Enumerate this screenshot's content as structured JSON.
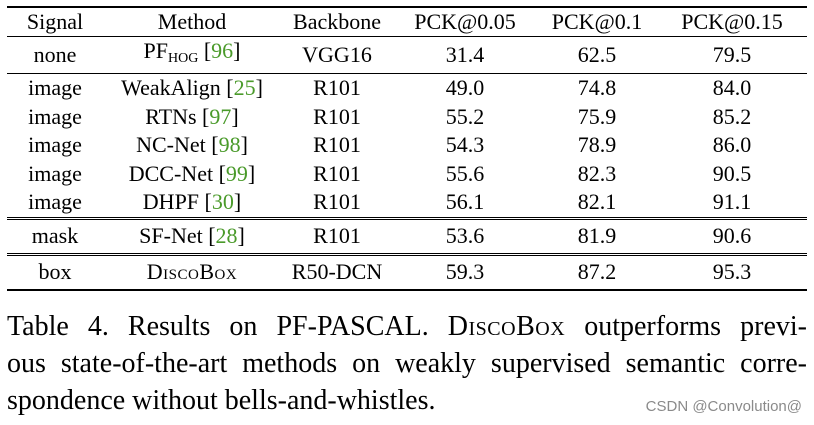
{
  "table": {
    "headers": [
      "Signal",
      "Method",
      "Backbone",
      "PCK@0.05",
      "PCK@0.1",
      "PCK@0.15"
    ],
    "rows": [
      {
        "signal": "none",
        "method": "PF",
        "method_sub": "HOG",
        "cite": "96",
        "backbone": "VGG16",
        "p05": "31.4",
        "p10": "62.5",
        "p15": "79.5"
      },
      {
        "signal": "image",
        "method": "WeakAlign",
        "cite": "25",
        "backbone": "R101",
        "p05": "49.0",
        "p10": "74.8",
        "p15": "84.0"
      },
      {
        "signal": "image",
        "method": "RTNs",
        "cite": "97",
        "backbone": "R101",
        "p05": "55.2",
        "p10": "75.9",
        "p15": "85.2"
      },
      {
        "signal": "image",
        "method": "NC-Net",
        "cite": "98",
        "backbone": "R101",
        "p05": "54.3",
        "p10": "78.9",
        "p15": "86.0"
      },
      {
        "signal": "image",
        "method": "DCC-Net",
        "cite": "99",
        "backbone": "R101",
        "p05": "55.6",
        "p10": "82.3",
        "p15": "90.5"
      },
      {
        "signal": "image",
        "method": "DHPF",
        "cite": "30",
        "backbone": "R101",
        "p05": "56.1",
        "p10": "82.1",
        "p15": "91.1"
      },
      {
        "signal": "mask",
        "method": "SF-Net",
        "cite": "28",
        "backbone": "R101",
        "p05": "53.6",
        "p10": "81.9",
        "p15": "90.6"
      },
      {
        "signal": "box",
        "method": "DiscoBox",
        "backbone": "R50-DCN",
        "p05": "59.3",
        "p10": "87.2",
        "p15": "95.3"
      }
    ]
  },
  "caption": {
    "line1_a": "Table 4. Results on PF-PASCAL. ",
    "line1_name": "DiscoBox",
    "line1_b": " outperforms previ-",
    "line2": "ous state-of-the-art methods on weakly supervised semantic corre-",
    "line3": "spondence without bells-and-whistles."
  },
  "watermark": "CSDN @Convolution@"
}
